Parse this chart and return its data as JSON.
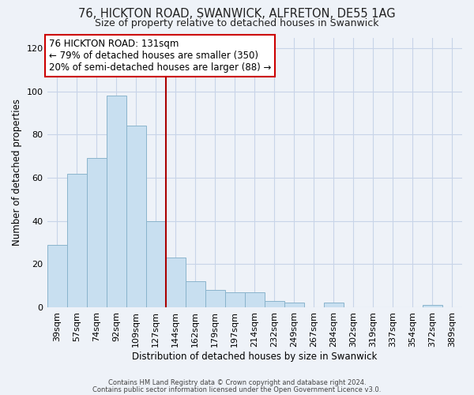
{
  "title": "76, HICKTON ROAD, SWANWICK, ALFRETON, DE55 1AG",
  "subtitle": "Size of property relative to detached houses in Swanwick",
  "xlabel": "Distribution of detached houses by size in Swanwick",
  "ylabel": "Number of detached properties",
  "categories": [
    "39sqm",
    "57sqm",
    "74sqm",
    "92sqm",
    "109sqm",
    "127sqm",
    "144sqm",
    "162sqm",
    "179sqm",
    "197sqm",
    "214sqm",
    "232sqm",
    "249sqm",
    "267sqm",
    "284sqm",
    "302sqm",
    "319sqm",
    "337sqm",
    "354sqm",
    "372sqm",
    "389sqm"
  ],
  "values": [
    29,
    62,
    69,
    98,
    84,
    40,
    23,
    12,
    8,
    7,
    7,
    3,
    2,
    0,
    2,
    0,
    0,
    0,
    0,
    1,
    0
  ],
  "bar_color": "#c8dff0",
  "bar_edge_color": "#8ab4cc",
  "vline_x": 5.5,
  "vline_color": "#aa0000",
  "annotation_line1": "76 HICKTON ROAD: 131sqm",
  "annotation_line2": "← 79% of detached houses are smaller (350)",
  "annotation_line3": "20% of semi-detached houses are larger (88) →",
  "ylim": [
    0,
    125
  ],
  "yticks": [
    0,
    20,
    40,
    60,
    80,
    100,
    120
  ],
  "footnote1": "Contains HM Land Registry data © Crown copyright and database right 2024.",
  "footnote2": "Contains public sector information licensed under the Open Government Licence v3.0.",
  "bg_color": "#eef2f8",
  "grid_color": "#c8d4e8",
  "title_fontsize": 10.5,
  "subtitle_fontsize": 9
}
